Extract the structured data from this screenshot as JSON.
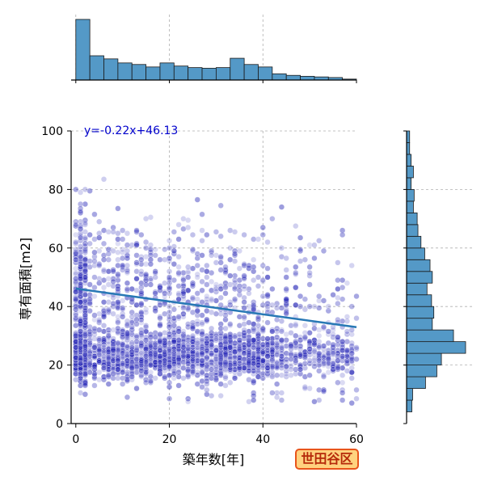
{
  "chart_data": {
    "type": "scatter",
    "xlabel": "築年数[年]",
    "ylabel": "専有面積[m2]",
    "xlim": [
      -1,
      60
    ],
    "ylim": [
      0,
      100
    ],
    "xticks": [
      "0",
      "20",
      "40",
      "60"
    ],
    "yticks": [
      "0",
      "20",
      "40",
      "60",
      "80",
      "100"
    ],
    "grid": true,
    "regression": {
      "slope": -0.22,
      "intercept": 46.13,
      "label": "y=-0.22x+46.13"
    },
    "badge": "世田谷区",
    "points_note": "approx. 3000 points, density concentrated at x 0-40 and y 18-50",
    "x_histogram": {
      "bin_start": 0,
      "bin_width": 3,
      "counts": [
        195,
        78,
        68,
        55,
        50,
        42,
        55,
        45,
        40,
        38,
        40,
        70,
        50,
        42,
        20,
        15,
        12,
        10,
        8,
        3
      ]
    },
    "y_histogram": {
      "bin_start": 0,
      "bin_width": 4,
      "counts": [
        0,
        7,
        8,
        25,
        40,
        46,
        78,
        62,
        34,
        36,
        33,
        27,
        34,
        31,
        24,
        19,
        15,
        14,
        9,
        10,
        6,
        9,
        6,
        4,
        4
      ]
    },
    "colors": {
      "points": "#2a2ab8",
      "regression": "#2878b5",
      "hist_fill": "#5499c7",
      "hist_edge": "#1a1a1a",
      "eqn_text": "#0000cc"
    }
  }
}
